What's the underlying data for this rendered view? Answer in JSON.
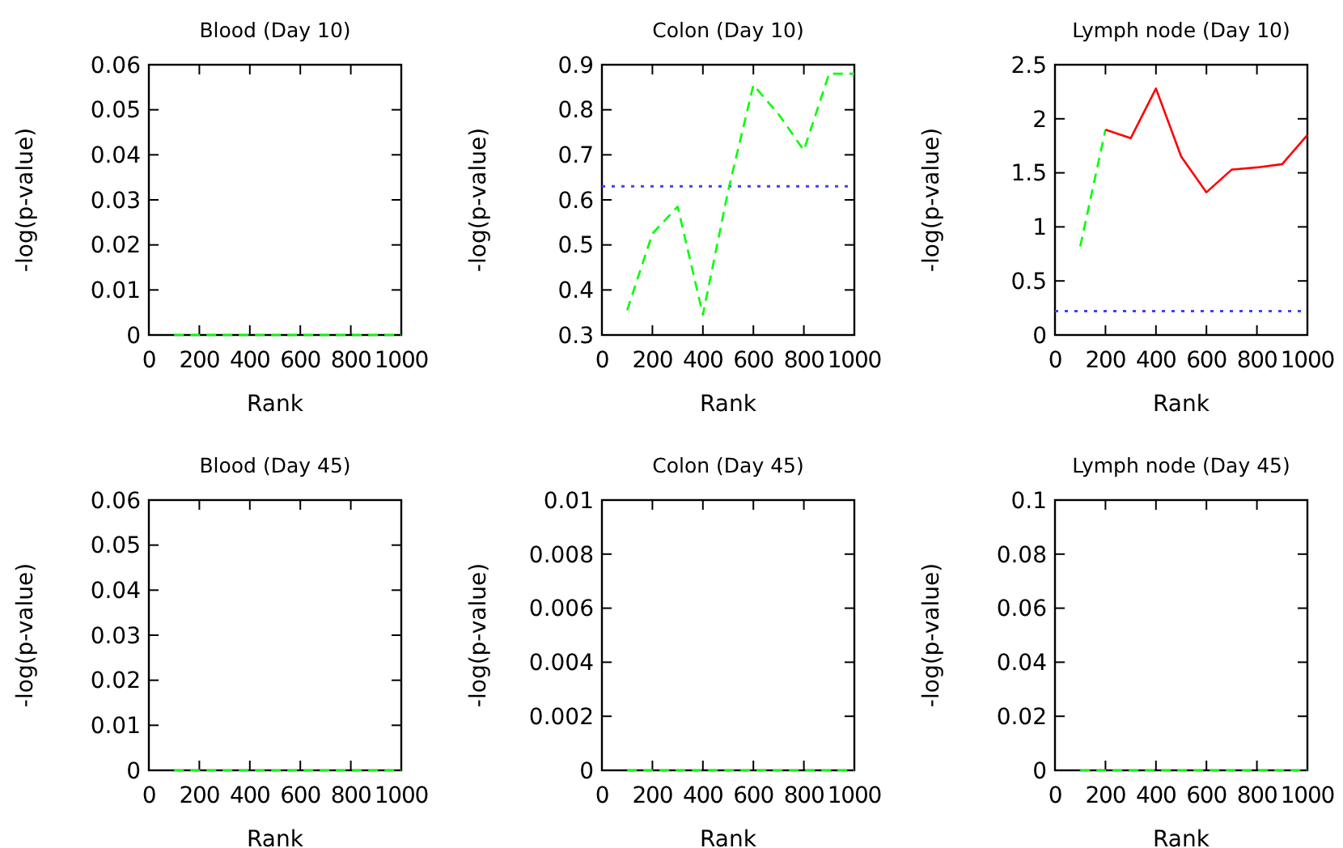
{
  "chart_data": [
    {
      "type": "line",
      "title": "Blood (Day 10)",
      "xlabel": "Rank",
      "ylabel": "-log(p-value)",
      "xlim": [
        0,
        1000
      ],
      "ylim": [
        0,
        0.06
      ],
      "xticks": [
        0,
        200,
        400,
        600,
        800,
        1000
      ],
      "yticks": [
        0,
        0.01,
        0.02,
        0.03,
        0.04,
        0.05,
        0.06
      ],
      "series": [
        {
          "color": "#00ff00",
          "line_style": "dashed",
          "x": [
            100,
            200,
            300,
            400,
            500,
            600,
            700,
            800,
            900,
            1000
          ],
          "values": [
            0,
            0,
            0,
            0,
            0,
            0,
            0,
            0,
            0,
            0
          ]
        }
      ]
    },
    {
      "type": "line",
      "title": "Colon (Day 10)",
      "xlabel": "Rank",
      "ylabel": "-log(p-value)",
      "xlim": [
        0,
        1000
      ],
      "ylim": [
        0.3,
        0.9
      ],
      "xticks": [
        0,
        200,
        400,
        600,
        800,
        1000
      ],
      "yticks": [
        0.3,
        0.4,
        0.5,
        0.6,
        0.7,
        0.8,
        0.9
      ],
      "series": [
        {
          "color": "#00ff00",
          "line_style": "dashed",
          "x": [
            100,
            200,
            300,
            400,
            500,
            600,
            700,
            800,
            900,
            1000
          ],
          "values": [
            0.355,
            0.525,
            0.585,
            0.345,
            0.62,
            0.855,
            0.79,
            0.71,
            0.88,
            0.88
          ]
        }
      ],
      "ref_lines": [
        {
          "axis": "y",
          "value": 0.63,
          "color": "#4040ff",
          "line_style": "dotted"
        }
      ]
    },
    {
      "type": "line",
      "title": "Lymph node (Day 10)",
      "xlabel": "Rank",
      "ylabel": "-log(p-value)",
      "xlim": [
        0,
        1000
      ],
      "ylim": [
        0,
        2.5
      ],
      "xticks": [
        0,
        200,
        400,
        600,
        800,
        1000
      ],
      "yticks": [
        0,
        0.5,
        1,
        1.5,
        2,
        2.5
      ],
      "series": [
        {
          "color": "#00ff00",
          "line_style": "dashed",
          "x": [
            100,
            200
          ],
          "values": [
            0.82,
            1.9
          ]
        },
        {
          "color": "#ff0000",
          "line_style": "solid",
          "x": [
            200,
            300,
            400,
            500,
            600,
            700,
            800,
            900,
            1000
          ],
          "values": [
            1.9,
            1.82,
            2.28,
            1.65,
            1.32,
            1.53,
            1.55,
            1.58,
            1.85
          ]
        }
      ],
      "ref_lines": [
        {
          "axis": "y",
          "value": 0.22,
          "color": "#4040ff",
          "line_style": "dotted"
        }
      ]
    },
    {
      "type": "line",
      "title": "Blood (Day 45)",
      "xlabel": "Rank",
      "ylabel": "-log(p-value)",
      "xlim": [
        0,
        1000
      ],
      "ylim": [
        0,
        0.06
      ],
      "xticks": [
        0,
        200,
        400,
        600,
        800,
        1000
      ],
      "yticks": [
        0,
        0.01,
        0.02,
        0.03,
        0.04,
        0.05,
        0.06
      ],
      "series": [
        {
          "color": "#00ff00",
          "line_style": "dashed",
          "x": [
            100,
            200,
            300,
            400,
            500,
            600,
            700,
            800,
            900,
            1000
          ],
          "values": [
            0,
            0,
            0,
            0,
            0,
            0,
            0,
            0,
            0,
            0
          ]
        }
      ]
    },
    {
      "type": "line",
      "title": "Colon (Day 45)",
      "xlabel": "Rank",
      "ylabel": "-log(p-value)",
      "xlim": [
        0,
        1000
      ],
      "ylim": [
        0,
        0.01
      ],
      "xticks": [
        0,
        200,
        400,
        600,
        800,
        1000
      ],
      "yticks": [
        0,
        0.002,
        0.004,
        0.006,
        0.008,
        0.01
      ],
      "series": [
        {
          "color": "#00ff00",
          "line_style": "dashed",
          "x": [
            100,
            200,
            300,
            400,
            500,
            600,
            700,
            800,
            900,
            1000
          ],
          "values": [
            0,
            0,
            0,
            0,
            0,
            0,
            0,
            0,
            0,
            0
          ]
        }
      ]
    },
    {
      "type": "line",
      "title": "Lymph node (Day 45)",
      "xlabel": "Rank",
      "ylabel": "-log(p-value)",
      "xlim": [
        0,
        1000
      ],
      "ylim": [
        0,
        0.1
      ],
      "xticks": [
        0,
        200,
        400,
        600,
        800,
        1000
      ],
      "yticks": [
        0,
        0.02,
        0.04,
        0.06,
        0.08,
        0.1
      ],
      "series": [
        {
          "color": "#00ff00",
          "line_style": "dashed",
          "x": [
            100,
            200,
            300,
            400,
            500,
            600,
            700,
            800,
            900,
            1000
          ],
          "values": [
            0,
            0,
            0,
            0,
            0,
            0,
            0,
            0,
            0,
            0
          ]
        }
      ]
    }
  ]
}
